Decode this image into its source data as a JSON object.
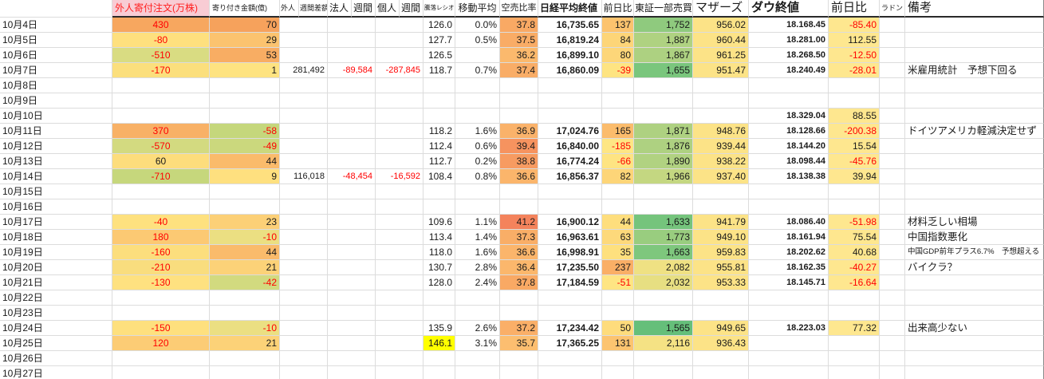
{
  "colors": {
    "negative": "#FF0000",
    "grid": "#dcdcdc",
    "header_pink": "#F8CCD4",
    "highlight": "#FFFF00"
  },
  "header": {
    "foreign_net": "外人寄付注文(万株)",
    "opening_amount": "寄り付き金額(億)",
    "w_foreign": "外人",
    "w_diff": "週間差額",
    "w_corp": "法人",
    "w_week1": "週間",
    "w_indiv": "個人",
    "w_week2": "週間",
    "updown_ratio": "騰落レシオ",
    "moving_average": "移動平均",
    "short_ratio": "空売比率",
    "nikkei_close": "日経平均終値",
    "nikkei_change": "前日比",
    "tse1_volume": "東証一部売買",
    "mothers": "マザーズ",
    "dow_close": "ダウ終値",
    "dow_change": "前日比",
    "radon": "ラドン",
    "note": "備考"
  },
  "rows": [
    {
      "d": "10月4日",
      "c2": "430",
      "c2bg": "#F7A75F",
      "c2r": 1,
      "c3": "70",
      "c3bg": "#F6A25C",
      "ratio": "126.0",
      "ma": "0.0%",
      "sr": "37.8",
      "srbg": "#F9A964",
      "nik": "16,735.65",
      "chg": "137",
      "chgbg": "#FCC36E",
      "tse": "1,752",
      "tsebg": "#8FCA7E",
      "mo": "956.02",
      "mobg": "#FCE387",
      "dow": "18.168.45",
      "dc": "-85.40",
      "dcr": 1,
      "dcbg": "#FEE78F"
    },
    {
      "d": "10月5日",
      "c2": "-80",
      "c2bg": "#FEE07E",
      "c2r": 1,
      "c3": "29",
      "c3bg": "#FBC36F",
      "ratio": "127.7",
      "ma": "0.5%",
      "sr": "37.5",
      "srbg": "#F9AC66",
      "nik": "16,819.24",
      "chg": "84",
      "chgbg": "#FDD578",
      "tse": "1,887",
      "tsebg": "#AFD281",
      "mo": "960.44",
      "mobg": "#FCE387",
      "dow": "18.281.00",
      "dc": "112.55",
      "dcbg": "#FEE78F"
    },
    {
      "d": "10月6日",
      "c2": "-510",
      "c2bg": "#D9DC82",
      "c2r": 1,
      "c3": "53",
      "c3bg": "#F8AD63",
      "ratio": "126.5",
      "sr": "36.2",
      "srbg": "#FBB96D",
      "nik": "16,899.10",
      "chg": "80",
      "chgbg": "#FDD679",
      "tse": "1,867",
      "tsebg": "#ADD181",
      "mo": "961.25",
      "mobg": "#FCE387",
      "dow": "18.268.50",
      "dc": "-12.50",
      "dcr": 1,
      "dcbg": "#FEE78F"
    },
    {
      "d": "10月7日",
      "c2": "-170",
      "c2bg": "#FBDF7D",
      "c2r": 1,
      "c3": "1",
      "c3bg": "#FEE381",
      "w1": "281,492",
      "w2": "-89,584",
      "w2r": 1,
      "w3": "-287,845",
      "w3r": 1,
      "ratio": "118.7",
      "ma": "0.7%",
      "sr": "37.4",
      "srbg": "#F9AD67",
      "nik": "16,860.09",
      "chg": "-39",
      "chgr": 1,
      "chgbg": "#FEE482",
      "tse": "1,655",
      "tsebg": "#7AC67D",
      "mo": "951.47",
      "mobg": "#FCE387",
      "dow": "18.240.49",
      "dc": "-28.01",
      "dcr": 1,
      "dcbg": "#FEE78F",
      "note": "米雇用統計　予想下回る"
    },
    {
      "d": "10月8日"
    },
    {
      "d": "10月9日"
    },
    {
      "d": "10月10日",
      "dow": "18.329.04",
      "dc": "88.55",
      "dcbg": "#FEE78F"
    },
    {
      "d": "10月11日",
      "c2": "370",
      "c2bg": "#F8B166",
      "c2r": 1,
      "c3": "-58",
      "c3bg": "#C5D77C",
      "c3r": 1,
      "ratio": "118.2",
      "ma": "1.6%",
      "sr": "36.9",
      "srbg": "#FAB26A",
      "nik": "17,024.76",
      "chg": "165",
      "chgbg": "#FBBC6C",
      "tse": "1,871",
      "tsebg": "#AED181",
      "mo": "948.76",
      "mobg": "#FCE387",
      "dow": "18.128.66",
      "dc": "-200.38",
      "dcr": 1,
      "dcbg": "#FEE78F",
      "note": "ドイツアメリカ軽減決定せず"
    },
    {
      "d": "10月12日",
      "c2": "-570",
      "c2bg": "#D3DA80",
      "c2r": 1,
      "c3": "-49",
      "c3bg": "#CBD87D",
      "c3r": 1,
      "ratio": "112.4",
      "ma": "0.6%",
      "sr": "39.4",
      "srbg": "#F6935F",
      "nik": "16,840.00",
      "chg": "-185",
      "chgr": 1,
      "chgbg": "#FEE684",
      "tse": "1,876",
      "tsebg": "#AED181",
      "mo": "939.44",
      "mobg": "#FCE387",
      "dow": "18.144.20",
      "dc": "15.54",
      "dcbg": "#FEE78F"
    },
    {
      "d": "10月13日",
      "c2": "60",
      "c2bg": "#FDDD7C",
      "c3": "44",
      "c3bg": "#FABB6B",
      "ratio": "112.7",
      "ma": "0.2%",
      "sr": "38.8",
      "srbg": "#F79B61",
      "nik": "16,774.24",
      "chg": "-66",
      "chgr": 1,
      "chgbg": "#FEE482",
      "tse": "1,890",
      "tsebg": "#B1D281",
      "mo": "938.22",
      "mobg": "#FCE387",
      "dow": "18.098.44",
      "dc": "-45.76",
      "dcr": 1,
      "dcbg": "#FEE78F"
    },
    {
      "d": "10月14日",
      "c2": "-710",
      "c2bg": "#C6D77C",
      "c2r": 1,
      "c3": "9",
      "c3bg": "#FEE07F",
      "w1": "116,018",
      "w2": "-48,454",
      "w2r": 1,
      "w3": "-16,592",
      "w3r": 1,
      "ratio": "108.4",
      "ma": "0.8%",
      "sr": "36.6",
      "srbg": "#FBB56B",
      "nik": "16,856.37",
      "chg": "82",
      "chgbg": "#FDD578",
      "tse": "1,966",
      "tsebg": "#C4D781",
      "mo": "937.40",
      "mobg": "#FCE387",
      "dow": "18.138.38",
      "dc": "39.94",
      "dcbg": "#FEE78F"
    },
    {
      "d": "10月15日"
    },
    {
      "d": "10月16日"
    },
    {
      "d": "10月17日",
      "c2": "-40",
      "c2bg": "#FEE17F",
      "c2r": 1,
      "c3": "23",
      "c3bg": "#FCD077",
      "ratio": "109.6",
      "ma": "1.1%",
      "sr": "41.2",
      "srbg": "#F4835C",
      "nik": "16,900.12",
      "chg": "44",
      "chgbg": "#FEDE7D",
      "tse": "1,633",
      "tsebg": "#75C47C",
      "mo": "941.79",
      "mobg": "#FCE387",
      "dow": "18.086.40",
      "dc": "-51.98",
      "dcr": 1,
      "dcbg": "#FEE78F",
      "note": "材料乏しい相場"
    },
    {
      "d": "10月18日",
      "c2": "180",
      "c2bg": "#FCC973",
      "c2r": 1,
      "c3": "-10",
      "c3bg": "#EBDF82",
      "c3r": 1,
      "ratio": "113.4",
      "ma": "1.4%",
      "sr": "37.3",
      "srbg": "#F9AE67",
      "nik": "16,963.61",
      "chg": "63",
      "chgbg": "#FDD97B",
      "tse": "1,773",
      "tsebg": "#99CD7F",
      "mo": "949.10",
      "mobg": "#FCE387",
      "dow": "18.161.94",
      "dc": "75.54",
      "dcbg": "#FEE78F",
      "note": "中国指数悪化"
    },
    {
      "d": "10月19日",
      "c2": "-160",
      "c2bg": "#FCDE7D",
      "c2r": 1,
      "c3": "44",
      "c3bg": "#FABB6B",
      "ratio": "118.0",
      "ma": "1.6%",
      "sr": "36.6",
      "srbg": "#FBB56B",
      "nik": "16,998.91",
      "chg": "35",
      "chgbg": "#FEE07E",
      "tse": "1,663",
      "tsebg": "#7EC77D",
      "mo": "959.83",
      "mobg": "#FCE387",
      "dow": "18.202.62",
      "dc": "40.68",
      "dcbg": "#FEE78F",
      "note": "中国GDP前年プラス6.7%　予想超える",
      "note_sm": 1
    },
    {
      "d": "10月20日",
      "c2": "-210",
      "c2bg": "#F9DD7E",
      "c2r": 1,
      "c3": "21",
      "c3bg": "#FCD278",
      "ratio": "130.7",
      "ma": "2.8%",
      "sr": "36.4",
      "srbg": "#FBB76C",
      "nik": "17,235.50",
      "chg": "237",
      "chgbg": "#FAAF66",
      "tse": "2,082",
      "tsebg": "#EFE183",
      "mo": "955.81",
      "mobg": "#FCE387",
      "dow": "18.162.35",
      "dc": "-40.27",
      "dcr": 1,
      "dcbg": "#FEE78F",
      "note": "バイクラ？"
    },
    {
      "d": "10月21日",
      "c2": "-130",
      "c2bg": "#FEE180",
      "c2r": 1,
      "c3": "-42",
      "c3bg": "#D2DA7F",
      "c3r": 1,
      "ratio": "128.0",
      "ma": "2.4%",
      "sr": "37.8",
      "srbg": "#F9A964",
      "nik": "17,184.59",
      "chg": "-51",
      "chgr": 1,
      "chgbg": "#FEE583",
      "tse": "2,032",
      "tsebg": "#E7DF82",
      "mo": "953.33",
      "mobg": "#FCE387",
      "dow": "18.145.71",
      "dc": "-16.64",
      "dcr": 1,
      "dcbg": "#FEE78F"
    },
    {
      "d": "10月22日"
    },
    {
      "d": "10月23日"
    },
    {
      "d": "10月24日",
      "c2": "-150",
      "c2bg": "#FEE07E",
      "c2r": 1,
      "c3": "-10",
      "c3bg": "#EBDF82",
      "c3r": 1,
      "ratio": "135.9",
      "ma": "2.6%",
      "sr": "37.2",
      "srbg": "#FAAF68",
      "nik": "17,234.42",
      "chg": "50",
      "chgbg": "#FEDC7C",
      "tse": "1,565",
      "tsebg": "#65BF7A",
      "mo": "949.65",
      "mobg": "#FCE387",
      "dow": "18.223.03",
      "dc": "77.32",
      "dcbg": "#FEE78F",
      "note": "出来高少ない"
    },
    {
      "d": "10月25日",
      "c2": "120",
      "c2bg": "#FCCC75",
      "c2r": 1,
      "c3": "21",
      "c3bg": "#FCD278",
      "ratio": "146.1",
      "ratiobg": "#FFFF00",
      "ma": "3.1%",
      "sr": "35.7",
      "srbg": "#FCBE70",
      "nik": "17,365.25",
      "chg": "131",
      "chgbg": "#FCC470",
      "tse": "2,116",
      "tsebg": "#F5E284",
      "mo": "936.43",
      "mobg": "#FCE387"
    },
    {
      "d": "10月26日"
    },
    {
      "d": "10月27日"
    }
  ]
}
